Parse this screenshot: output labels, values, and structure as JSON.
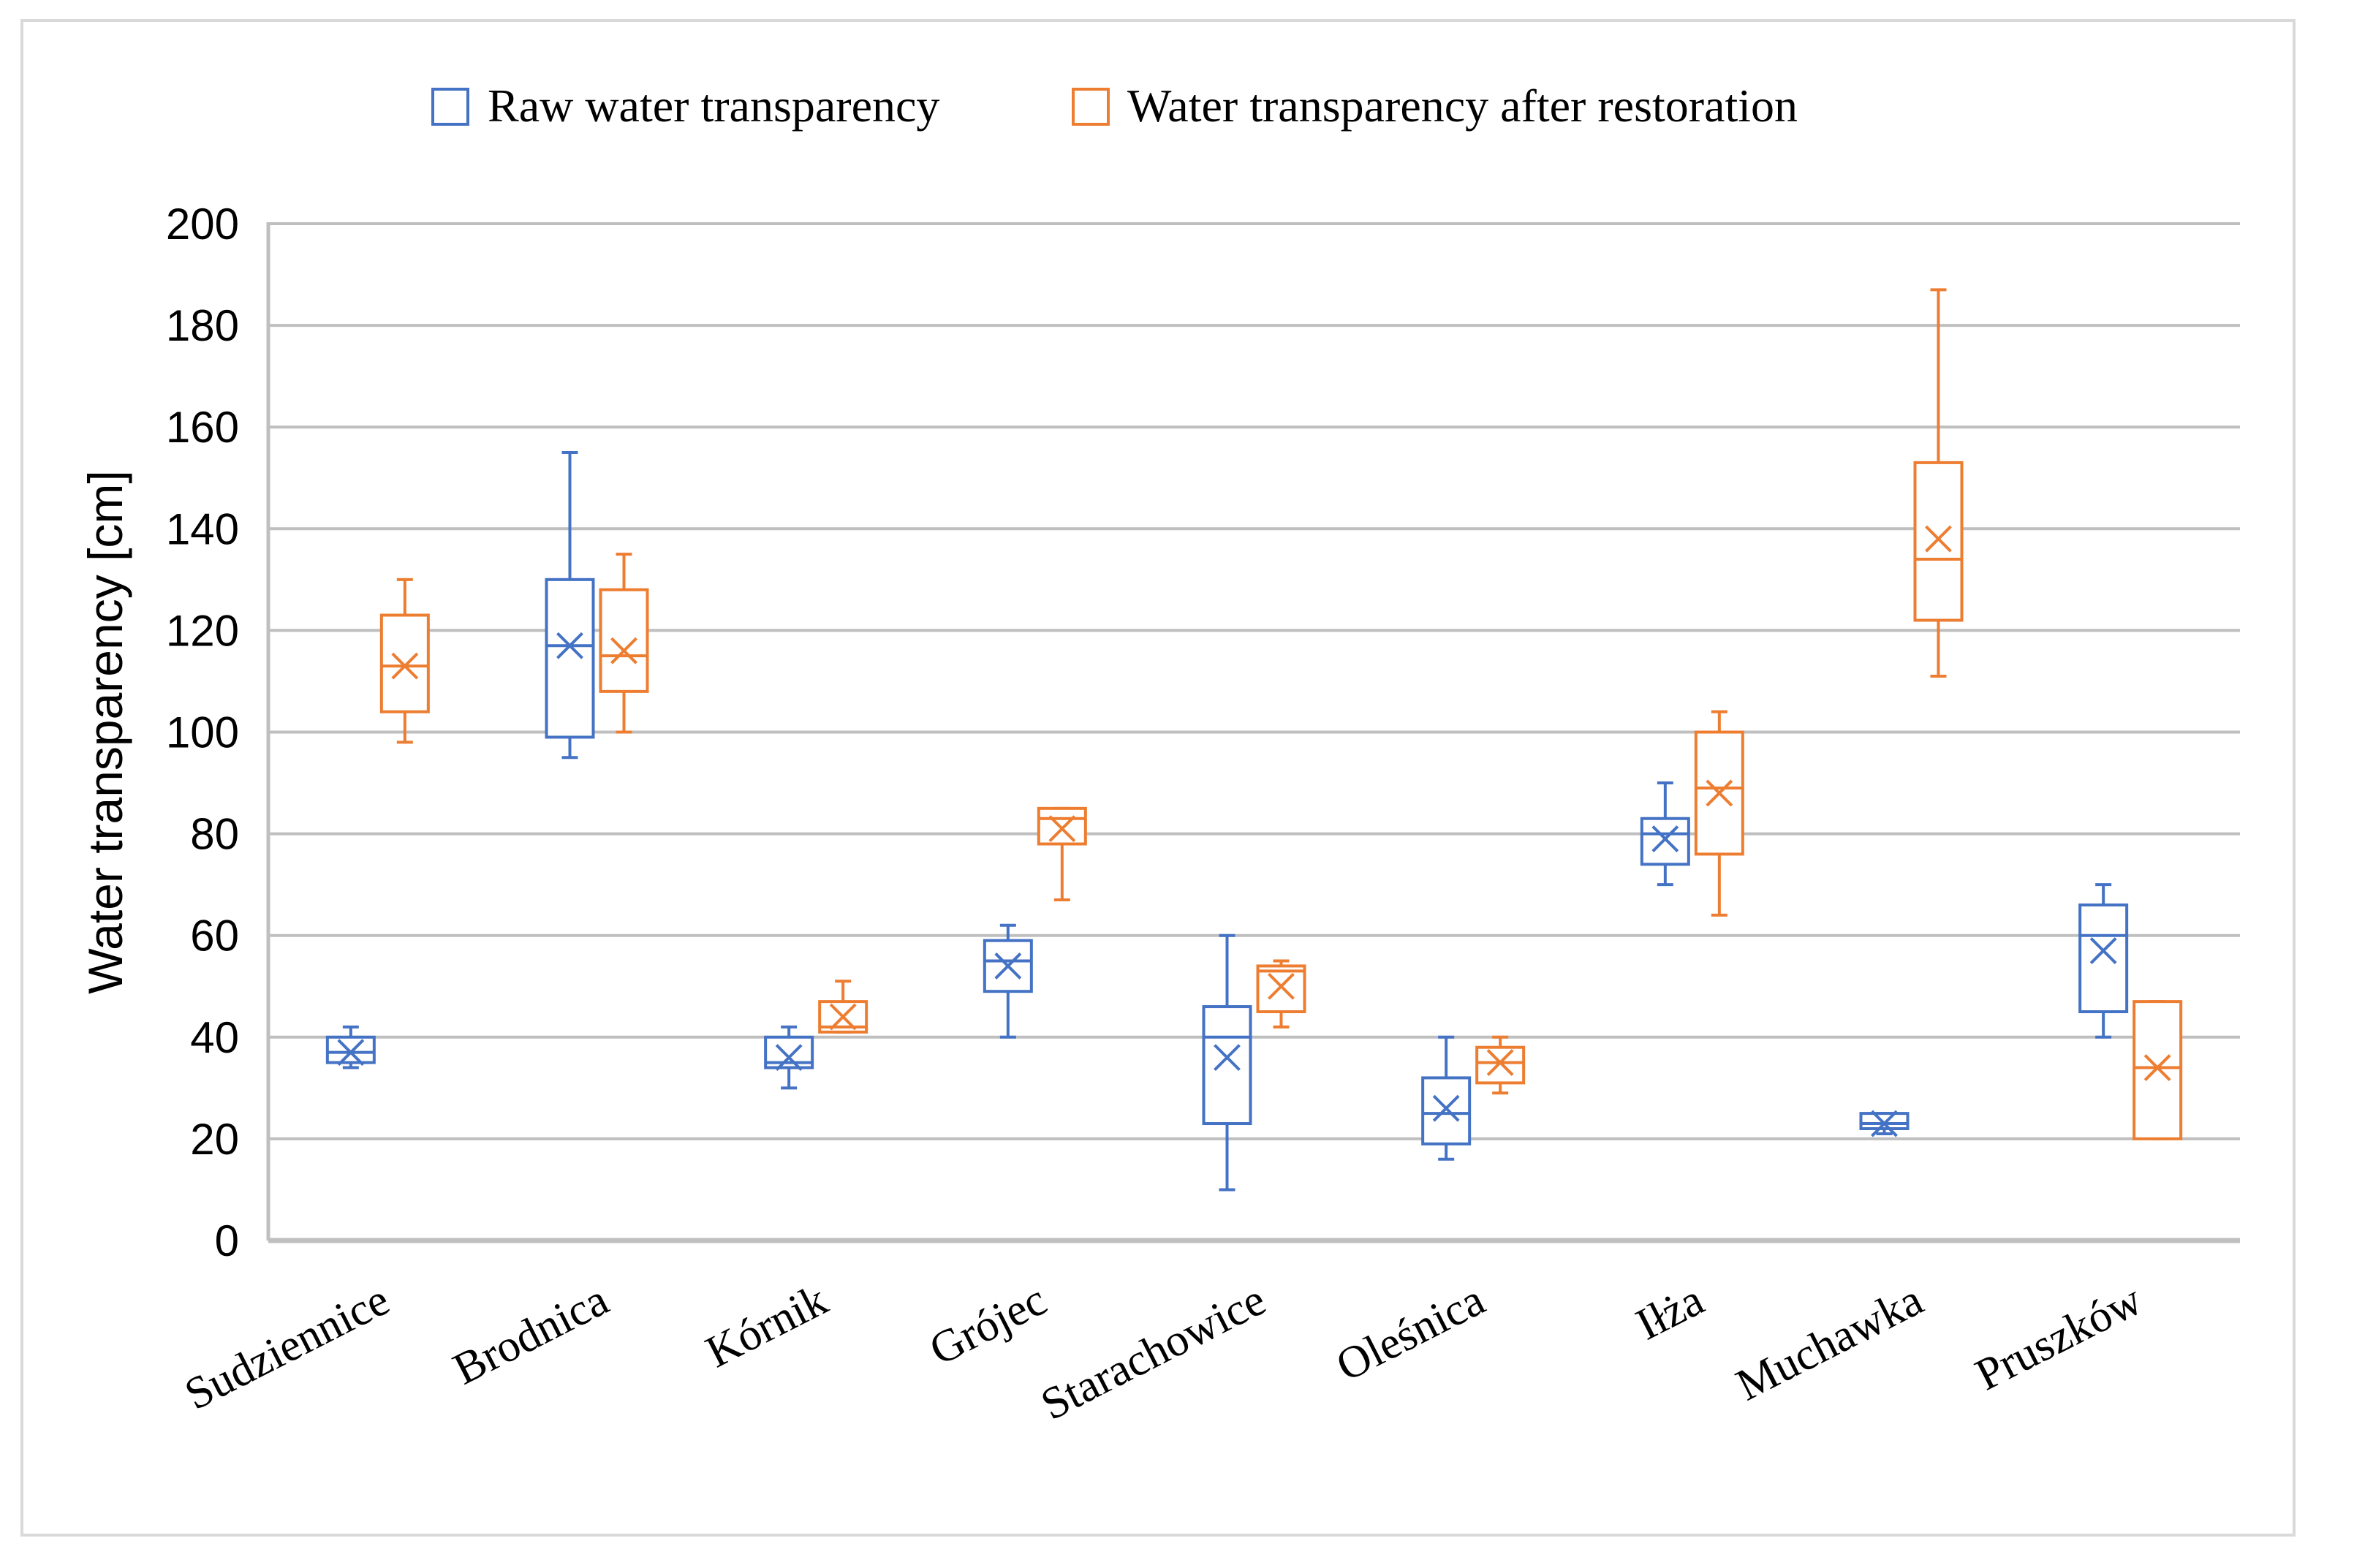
{
  "chart_data": {
    "type": "boxplot",
    "title": "",
    "xlabel": "",
    "ylabel": "Water transparency [cm]",
    "ylim": [
      0,
      200
    ],
    "yticks": [
      0,
      20,
      40,
      60,
      80,
      100,
      120,
      140,
      160,
      180,
      200
    ],
    "grid": true,
    "legend_position": "top-center",
    "categories": [
      "Sudziennice",
      "Brodnica",
      "Kórnik",
      "Grójec",
      "Starachowice",
      "Oleśnica",
      "Iłża",
      "Muchawka",
      "Pruszków"
    ],
    "series": [
      {
        "name": "Raw water transparency",
        "color": "#4472c4",
        "boxes": [
          {
            "category": "Sudziennice",
            "min": 34,
            "q1": 35,
            "median": 37,
            "q3": 40,
            "max": 42,
            "mean": 37
          },
          {
            "category": "Brodnica",
            "min": 95,
            "q1": 99,
            "median": 117,
            "q3": 130,
            "max": 155,
            "mean": 117
          },
          {
            "category": "Kórnik",
            "min": 30,
            "q1": 34,
            "median": 35,
            "q3": 40,
            "max": 42,
            "mean": 36
          },
          {
            "category": "Grójec",
            "min": 40,
            "q1": 49,
            "median": 55,
            "q3": 59,
            "max": 62,
            "mean": 54
          },
          {
            "category": "Starachowice",
            "min": 10,
            "q1": 23,
            "median": 40,
            "q3": 46,
            "max": 60,
            "mean": 36
          },
          {
            "category": "Oleśnica",
            "min": 16,
            "q1": 19,
            "median": 25,
            "q3": 32,
            "max": 40,
            "mean": 26
          },
          {
            "category": "Iłża",
            "min": 70,
            "q1": 74,
            "median": 80,
            "q3": 83,
            "max": 90,
            "mean": 79
          },
          {
            "category": "Muchawka",
            "min": 21,
            "q1": 22,
            "median": 23,
            "q3": 25,
            "max": 25,
            "mean": 23
          },
          {
            "category": "Pruszków",
            "min": 40,
            "q1": 45,
            "median": 60,
            "q3": 66,
            "max": 70,
            "mean": 57
          }
        ]
      },
      {
        "name": "Water transparency after restoration",
        "color": "#ed7d31",
        "boxes": [
          {
            "category": "Sudziennice",
            "min": 98,
            "q1": 104,
            "median": 113,
            "q3": 123,
            "max": 130,
            "mean": 113
          },
          {
            "category": "Brodnica",
            "min": 100,
            "q1": 108,
            "median": 115,
            "q3": 128,
            "max": 135,
            "mean": 116
          },
          {
            "category": "Kórnik",
            "min": 41,
            "q1": 41,
            "median": 42,
            "q3": 47,
            "max": 51,
            "mean": 44
          },
          {
            "category": "Grójec",
            "min": 67,
            "q1": 78,
            "median": 83,
            "q3": 85,
            "max": 85,
            "mean": 81
          },
          {
            "category": "Starachowice",
            "min": 42,
            "q1": 45,
            "median": 53,
            "q3": 54,
            "max": 55,
            "mean": 50
          },
          {
            "category": "Oleśnica",
            "min": 29,
            "q1": 31,
            "median": 35,
            "q3": 38,
            "max": 40,
            "mean": 35
          },
          {
            "category": "Iłża",
            "min": 64,
            "q1": 76,
            "median": 89,
            "q3": 100,
            "max": 104,
            "mean": 88
          },
          {
            "category": "Muchawka",
            "min": 111,
            "q1": 122,
            "median": 134,
            "q3": 153,
            "max": 187,
            "mean": 138
          },
          {
            "category": "Pruszków",
            "min": 20,
            "q1": 20,
            "median": 34,
            "q3": 47,
            "max": 47,
            "mean": 34
          }
        ]
      }
    ]
  }
}
